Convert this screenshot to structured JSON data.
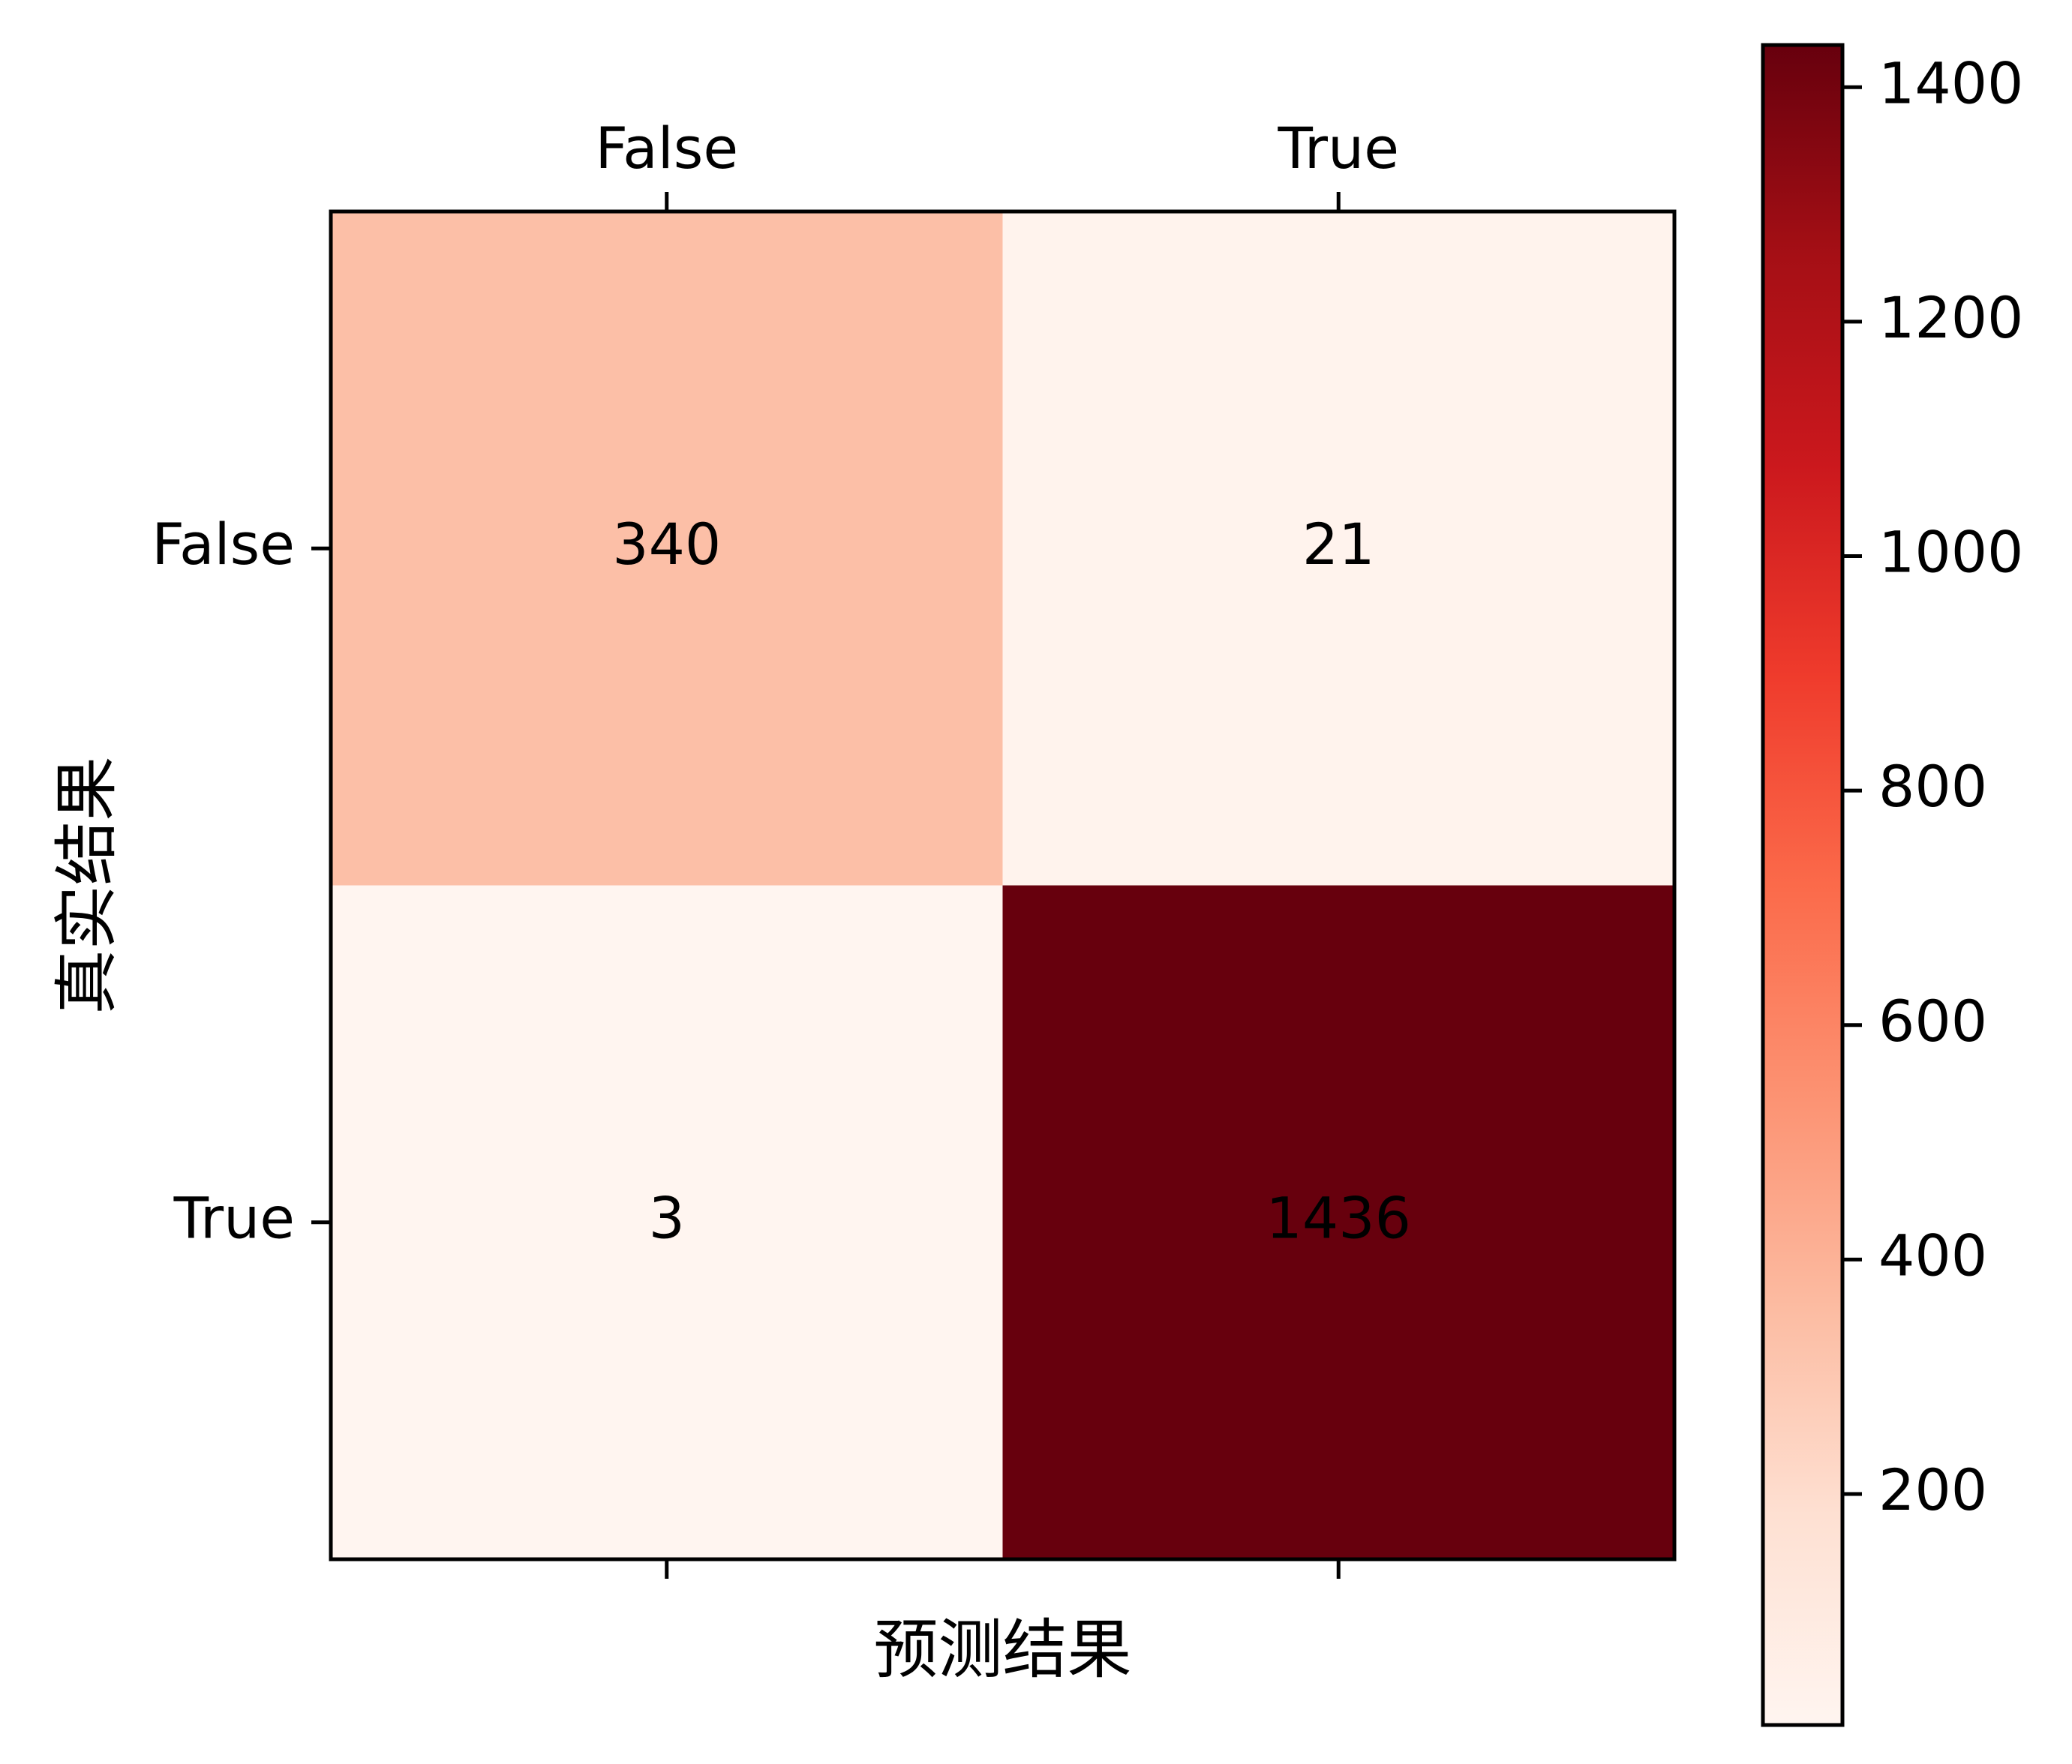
{
  "chart_data": {
    "type": "heatmap",
    "title": "",
    "xlabel": "预测结果",
    "ylabel": "真实结果",
    "x_categories": [
      "False",
      "True"
    ],
    "y_categories": [
      "False",
      "True"
    ],
    "values": [
      [
        340,
        21
      ],
      [
        3,
        1436
      ]
    ],
    "colormap": "Reds",
    "colorbar": {
      "range": [
        3,
        1436
      ],
      "ticks": [
        200,
        400,
        600,
        800,
        1000,
        1200,
        1400
      ],
      "placement": "right"
    },
    "x_axis_position": "top",
    "grid": false
  }
}
